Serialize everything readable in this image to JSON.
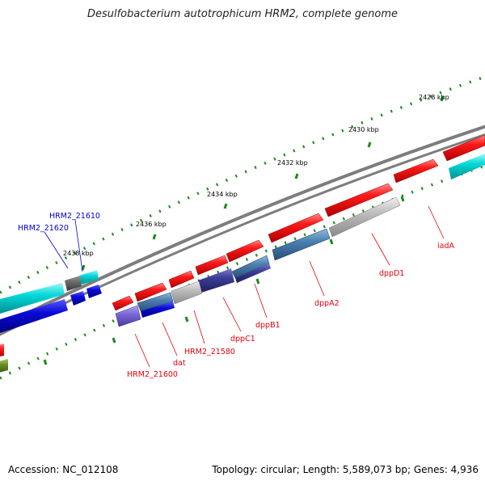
{
  "title": "Desulfobacterium autotrophicum HRM2, complete genome",
  "footer": {
    "accession": "Accession: NC_012108",
    "summary": "Topology: circular; Length: 5,589,073 bp; Genes: 4,936"
  },
  "scale_labels": [
    "2428 kbp",
    "2430 kbp",
    "2432 kbp",
    "2434 kbp",
    "2436 kbp",
    "2438 kbp"
  ],
  "gene_labels": [
    {
      "text": "iadA",
      "color": "#e8000b"
    },
    {
      "text": "dppD1",
      "color": "#e8000b"
    },
    {
      "text": "dppA2",
      "color": "#e8000b"
    },
    {
      "text": "dppB1",
      "color": "#e8000b"
    },
    {
      "text": "dppC1",
      "color": "#e8000b"
    },
    {
      "text": "HRM2_21580",
      "color": "#e8000b"
    },
    {
      "text": "dat",
      "color": "#e8000b"
    },
    {
      "text": "HRM2_21600",
      "color": "#e8000b"
    },
    {
      "text": "HRM2_21610",
      "color": "#0000cc"
    },
    {
      "text": "HRM2_21620",
      "color": "#0000cc"
    }
  ],
  "colors": {
    "red_gene": "#ff1a1a",
    "cyan_gene": "#00d8d8",
    "blue_gene": "#0a0ad8",
    "steel_gene": "#4a7fb0",
    "purple_gene": "#3c3c96",
    "lavender_gene": "#7b68d8",
    "gray_gene": "#bdbdbd",
    "dark_gray_gene": "#6a6a6a",
    "olive_gene": "#6b8e23",
    "backbone": "#7d7d7d",
    "tick": "#1a8a1a"
  }
}
